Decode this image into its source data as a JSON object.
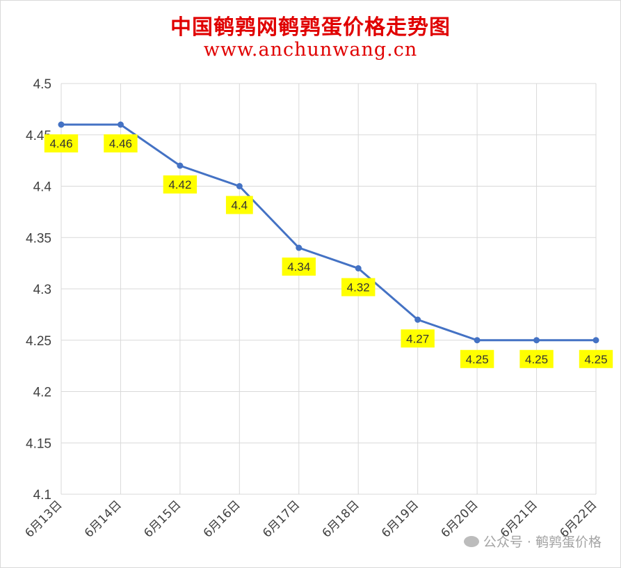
{
  "chart_data": {
    "type": "line",
    "title": "中国鹌鹑网鹌鹑蛋价格走势图",
    "subtitle": "www.anchunwang.cn",
    "categories": [
      "6月13日",
      "6月14日",
      "6月15日",
      "6月16日",
      "6月17日",
      "6月18日",
      "6月19日",
      "6月20日",
      "6月21日",
      "6月22日"
    ],
    "values": [
      4.46,
      4.46,
      4.42,
      4.4,
      4.34,
      4.32,
      4.27,
      4.25,
      4.25,
      4.25
    ],
    "data_labels": [
      "4.46",
      "4.46",
      "4.42",
      "4.4",
      "4.34",
      "4.32",
      "4.27",
      "4.25",
      "4.25",
      "4.25"
    ],
    "ylim": [
      4.1,
      4.5
    ],
    "yticks": [
      "4.1",
      "4.15",
      "4.2",
      "4.25",
      "4.3",
      "4.35",
      "4.4",
      "4.45",
      "4.5"
    ],
    "grid": true,
    "line_color": "#4472c4",
    "label_bg_color": "#ffff00"
  },
  "watermark": {
    "text": "公众号 · 鹌鹑蛋价格",
    "icon": "wechat-icon"
  }
}
